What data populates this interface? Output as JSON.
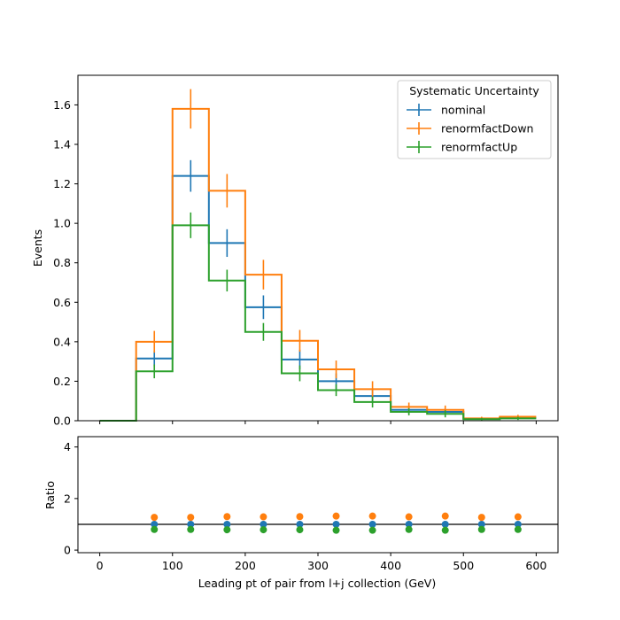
{
  "chart_data": {
    "type": "line",
    "bin_edges": [
      0,
      50,
      100,
      150,
      200,
      250,
      300,
      350,
      400,
      450,
      500,
      550,
      600
    ],
    "x": [
      25,
      75,
      125,
      175,
      225,
      275,
      325,
      375,
      425,
      475,
      525,
      575
    ],
    "xlabel": "Leading pt of pair from l+j collection (GeV)",
    "xlim": [
      -30,
      630
    ],
    "xticks": [
      0,
      100,
      200,
      300,
      400,
      500,
      600
    ],
    "top_panel": {
      "ylabel": "Events",
      "ylim": [
        0,
        1.75
      ],
      "yticks": [
        "0.0",
        "0.2",
        "0.4",
        "0.6",
        "0.8",
        "1.0",
        "1.2",
        "1.4",
        "1.6"
      ],
      "legend_title": "Systematic Uncertainty",
      "legend_position": "top-right"
    },
    "bottom_panel": {
      "ylabel": "Ratio",
      "ylim": [
        -0.1,
        4.4
      ],
      "yticks": [
        "0",
        "2",
        "4"
      ],
      "reference_line": 1.0
    },
    "series": [
      {
        "name": "nominal",
        "color": "#1f77b4",
        "values": [
          0,
          0.315,
          1.24,
          0.9,
          0.575,
          0.31,
          0.2,
          0.125,
          0.055,
          0.045,
          0.01,
          0.015
        ],
        "errors": [
          0,
          0.04,
          0.08,
          0.07,
          0.06,
          0.05,
          0.04,
          0.035,
          0.02,
          0.02,
          0.008,
          0.01
        ],
        "ratio": [
          null,
          1.0,
          1.0,
          1.0,
          1.0,
          1.0,
          1.0,
          1.0,
          1.0,
          1.0,
          1.0,
          1.0
        ]
      },
      {
        "name": "renormfactDown",
        "color": "#ff7f0e",
        "values": [
          0,
          0.4,
          1.58,
          1.165,
          0.74,
          0.405,
          0.26,
          0.16,
          0.07,
          0.055,
          0.012,
          0.02
        ],
        "errors": [
          0,
          0.055,
          0.1,
          0.085,
          0.075,
          0.055,
          0.045,
          0.04,
          0.022,
          0.022,
          0.008,
          0.01
        ],
        "ratio": [
          null,
          1.27,
          1.27,
          1.3,
          1.29,
          1.3,
          1.32,
          1.32,
          1.29,
          1.32,
          1.27,
          1.29
        ]
      },
      {
        "name": "renormfactUp",
        "color": "#2ca02c",
        "values": [
          0,
          0.25,
          0.99,
          0.71,
          0.45,
          0.24,
          0.155,
          0.095,
          0.045,
          0.035,
          0.008,
          0.012
        ],
        "errors": [
          0,
          0.035,
          0.065,
          0.055,
          0.045,
          0.04,
          0.03,
          0.028,
          0.018,
          0.018,
          0.006,
          0.008
        ],
        "ratio": [
          null,
          0.8,
          0.8,
          0.79,
          0.79,
          0.79,
          0.77,
          0.77,
          0.8,
          0.77,
          0.8,
          0.8
        ]
      }
    ]
  }
}
